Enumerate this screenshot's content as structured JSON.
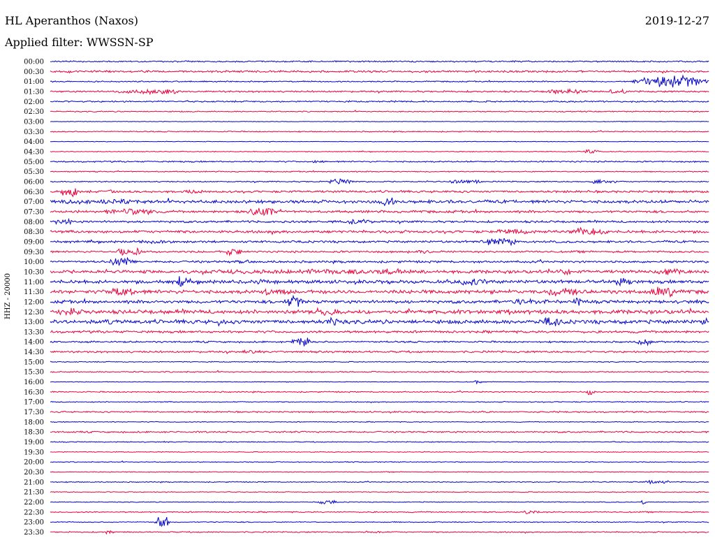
{
  "header": {
    "station": "HL Aperanthos (Naxos)",
    "date": "2019-12-27",
    "filter": "Applied filter: WWSSN-SP"
  },
  "chart_data": {
    "type": "line",
    "kind": "seismic helicorder",
    "title": "HL Aperanthos (Naxos)",
    "date": "2019-12-27",
    "filter": "WWSSN-SP",
    "ylabel": "HHZ - 20000",
    "rows": [
      "00:00",
      "00:30",
      "01:00",
      "01:30",
      "02:00",
      "02:30",
      "03:00",
      "03:30",
      "04:00",
      "04:30",
      "05:00",
      "05:30",
      "06:00",
      "06:30",
      "07:00",
      "07:30",
      "08:00",
      "08:30",
      "09:00",
      "09:30",
      "10:00",
      "10:30",
      "11:00",
      "11:30",
      "12:00",
      "12:30",
      "13:00",
      "13:30",
      "14:00",
      "14:30",
      "15:00",
      "15:30",
      "16:00",
      "16:30",
      "17:00",
      "17:30",
      "18:00",
      "18:30",
      "19:00",
      "19:30",
      "20:00",
      "20:30",
      "21:00",
      "21:30",
      "22:00",
      "22:30",
      "23:00",
      "23:30"
    ],
    "series_colors": [
      "#0000c8",
      "#e8003c"
    ],
    "noise_level": [
      1.2,
      1.6,
      1.0,
      1.4,
      1.3,
      0.9,
      0.5,
      0.9,
      0.5,
      0.7,
      1.2,
      0.9,
      1.0,
      1.8,
      2.6,
      2.0,
      1.8,
      2.2,
      1.8,
      1.6,
      1.8,
      2.6,
      2.8,
      3.0,
      2.6,
      3.2,
      3.2,
      2.0,
      1.4,
      1.6,
      0.8,
      1.0,
      0.6,
      1.0,
      0.8,
      1.2,
      0.7,
      1.3,
      0.8,
      0.7,
      0.7,
      0.7,
      0.8,
      0.7,
      0.7,
      1.0,
      0.8,
      1.0
    ],
    "events": [
      {
        "row": 2,
        "pos": 0.94,
        "width": 0.08,
        "amp": 9
      },
      {
        "row": 3,
        "pos": 0.15,
        "width": 0.07,
        "amp": 4
      },
      {
        "row": 3,
        "pos": 0.78,
        "width": 0.04,
        "amp": 4
      },
      {
        "row": 3,
        "pos": 0.86,
        "width": 0.02,
        "amp": 4
      },
      {
        "row": 9,
        "pos": 0.82,
        "width": 0.02,
        "amp": 3
      },
      {
        "row": 10,
        "pos": 0.41,
        "width": 0.02,
        "amp": 2
      },
      {
        "row": 12,
        "pos": 0.44,
        "width": 0.03,
        "amp": 4
      },
      {
        "row": 12,
        "pos": 0.63,
        "width": 0.04,
        "amp": 3
      },
      {
        "row": 12,
        "pos": 0.84,
        "width": 0.03,
        "amp": 3
      },
      {
        "row": 13,
        "pos": 0.03,
        "width": 0.02,
        "amp": 8
      },
      {
        "row": 13,
        "pos": 0.09,
        "width": 0.01,
        "amp": 5
      },
      {
        "row": 13,
        "pos": 0.22,
        "width": 0.03,
        "amp": 3
      },
      {
        "row": 14,
        "pos": 0.04,
        "width": 0.04,
        "amp": 4
      },
      {
        "row": 14,
        "pos": 0.1,
        "width": 0.04,
        "amp": 4
      },
      {
        "row": 14,
        "pos": 0.51,
        "width": 0.02,
        "amp": 6
      },
      {
        "row": 15,
        "pos": 0.12,
        "width": 0.06,
        "amp": 5
      },
      {
        "row": 15,
        "pos": 0.32,
        "width": 0.03,
        "amp": 7
      },
      {
        "row": 16,
        "pos": 0.02,
        "width": 0.02,
        "amp": 5
      },
      {
        "row": 16,
        "pos": 0.47,
        "width": 0.03,
        "amp": 4
      },
      {
        "row": 17,
        "pos": 0.7,
        "width": 0.04,
        "amp": 4
      },
      {
        "row": 17,
        "pos": 0.82,
        "width": 0.04,
        "amp": 7
      },
      {
        "row": 18,
        "pos": 0.16,
        "width": 0.04,
        "amp": 3
      },
      {
        "row": 18,
        "pos": 0.68,
        "width": 0.04,
        "amp": 6
      },
      {
        "row": 19,
        "pos": 0.12,
        "width": 0.03,
        "amp": 6
      },
      {
        "row": 19,
        "pos": 0.28,
        "width": 0.02,
        "amp": 6
      },
      {
        "row": 19,
        "pos": 0.56,
        "width": 0.03,
        "amp": 3
      },
      {
        "row": 20,
        "pos": 0.11,
        "width": 0.03,
        "amp": 6
      },
      {
        "row": 20,
        "pos": 0.29,
        "width": 0.02,
        "amp": 3
      },
      {
        "row": 21,
        "pos": 0.4,
        "width": 0.25,
        "amp": 4
      },
      {
        "row": 21,
        "pos": 0.78,
        "width": 0.02,
        "amp": 6
      },
      {
        "row": 21,
        "pos": 0.94,
        "width": 0.04,
        "amp": 5
      },
      {
        "row": 22,
        "pos": 0.2,
        "width": 0.01,
        "amp": 11
      },
      {
        "row": 22,
        "pos": 0.32,
        "width": 0.02,
        "amp": 6
      },
      {
        "row": 22,
        "pos": 0.64,
        "width": 0.03,
        "amp": 6
      },
      {
        "row": 22,
        "pos": 0.87,
        "width": 0.02,
        "amp": 6
      },
      {
        "row": 23,
        "pos": 0.11,
        "width": 0.03,
        "amp": 6
      },
      {
        "row": 23,
        "pos": 0.34,
        "width": 0.03,
        "amp": 6
      },
      {
        "row": 23,
        "pos": 0.78,
        "width": 0.04,
        "amp": 7
      },
      {
        "row": 23,
        "pos": 0.93,
        "width": 0.03,
        "amp": 8
      },
      {
        "row": 24,
        "pos": 0.37,
        "width": 0.02,
        "amp": 9
      },
      {
        "row": 24,
        "pos": 0.73,
        "width": 0.05,
        "amp": 4
      },
      {
        "row": 24,
        "pos": 0.8,
        "width": 0.01,
        "amp": 8
      },
      {
        "row": 25,
        "pos": 0.03,
        "width": 0.03,
        "amp": 6
      },
      {
        "row": 25,
        "pos": 0.42,
        "width": 0.03,
        "amp": 7
      },
      {
        "row": 26,
        "pos": 0.09,
        "width": 0.01,
        "amp": 6
      },
      {
        "row": 26,
        "pos": 0.26,
        "width": 0.01,
        "amp": 7
      },
      {
        "row": 26,
        "pos": 0.43,
        "width": 0.01,
        "amp": 7
      },
      {
        "row": 26,
        "pos": 0.76,
        "width": 0.02,
        "amp": 7
      },
      {
        "row": 26,
        "pos": 0.99,
        "width": 0.01,
        "amp": 6
      },
      {
        "row": 28,
        "pos": 0.38,
        "width": 0.02,
        "amp": 7
      },
      {
        "row": 28,
        "pos": 0.9,
        "width": 0.02,
        "amp": 5
      },
      {
        "row": 29,
        "pos": 0.3,
        "width": 0.02,
        "amp": 3
      },
      {
        "row": 32,
        "pos": 0.65,
        "width": 0.01,
        "amp": 3
      },
      {
        "row": 33,
        "pos": 0.82,
        "width": 0.01,
        "amp": 4
      },
      {
        "row": 42,
        "pos": 0.92,
        "width": 0.03,
        "amp": 3
      },
      {
        "row": 44,
        "pos": 0.42,
        "width": 0.02,
        "amp": 5
      },
      {
        "row": 44,
        "pos": 0.9,
        "width": 0.005,
        "amp": 4
      },
      {
        "row": 45,
        "pos": 0.73,
        "width": 0.02,
        "amp": 3
      },
      {
        "row": 46,
        "pos": 0.17,
        "width": 0.015,
        "amp": 11
      },
      {
        "row": 47,
        "pos": 0.09,
        "width": 0.01,
        "amp": 4
      },
      {
        "row": 47,
        "pos": 0.49,
        "width": 0.02,
        "amp": 2
      }
    ]
  }
}
